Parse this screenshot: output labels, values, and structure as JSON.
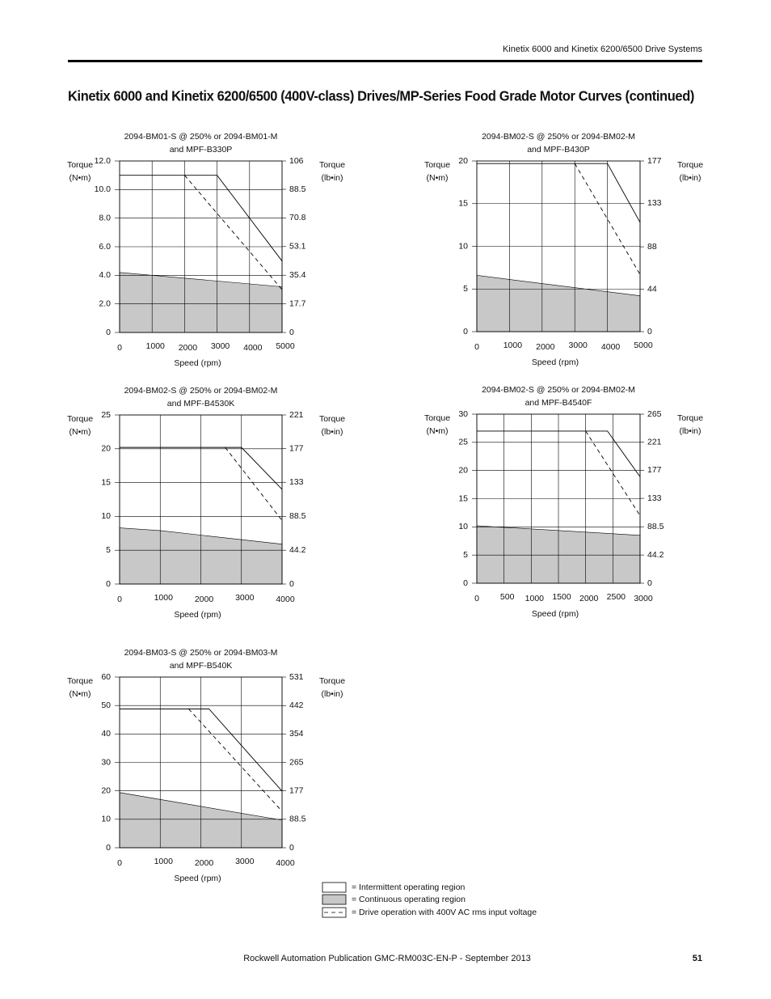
{
  "header": {
    "running_title": "Kinetix 6000 and Kinetix 6200/6500 Drive Systems"
  },
  "title": "Kinetix 6000 and Kinetix 6200/6500 (400V-class) Drives/MP-Series Food Grade Motor Curves (continued)",
  "chart_data": [
    {
      "type": "line",
      "title": [
        "2094-BM01-S @ 250% or 2094-BM01-M",
        "and MPF-B330P"
      ],
      "ylabel": [
        "Torque",
        "(N•m)"
      ],
      "y2label": [
        "Torque",
        "(lb•in)"
      ],
      "xlabel": "Speed (rpm)",
      "xlim": [
        0,
        5000
      ],
      "xticks": [
        0,
        1000,
        2000,
        3000,
        4000,
        5000
      ],
      "ylim": [
        0,
        12
      ],
      "yticks": [
        0,
        {
          "value": 2,
          "label": "2.0"
        },
        {
          "value": 4,
          "label": "4.0"
        },
        {
          "value": 6,
          "label": "6.0"
        },
        {
          "value": 8,
          "label": "8.0"
        },
        {
          "value": 10,
          "label": "10.0"
        },
        {
          "value": 12,
          "label": "12.0"
        }
      ],
      "y2lim": [
        0,
        106
      ],
      "y2ticks": [
        0,
        17.7,
        35.4,
        53.1,
        70.8,
        88.5,
        106
      ],
      "grid": true,
      "series": [
        {
          "style": "area",
          "color": "#c8c8c8",
          "x": [
            0,
            5000
          ],
          "values": [
            4.2,
            3.2
          ]
        },
        {
          "style": "solid",
          "color": "#000000",
          "x": [
            0,
            3000,
            5000
          ],
          "values": [
            11,
            11,
            5
          ]
        },
        {
          "style": "dashed",
          "color": "#000000",
          "x": [
            2000,
            5000
          ],
          "values": [
            11,
            3
          ]
        }
      ]
    },
    {
      "type": "line",
      "title": [
        "2094-BM02-S @ 250% or 2094-BM02-M",
        "and MPF-B430P"
      ],
      "ylabel": [
        "Torque",
        "(N•m)"
      ],
      "y2label": [
        "Torque",
        "(lb•in)"
      ],
      "xlabel": "Speed (rpm)",
      "xlim": [
        0,
        5000
      ],
      "xticks": [
        0,
        1000,
        2000,
        3000,
        4000,
        5000
      ],
      "ylim": [
        0,
        20
      ],
      "yticks": [
        0,
        5,
        10,
        15,
        20
      ],
      "y2lim": [
        0,
        177
      ],
      "y2ticks": [
        0,
        44,
        88,
        133,
        177
      ],
      "grid": true,
      "series": [
        {
          "style": "area",
          "color": "#c8c8c8",
          "x": [
            0,
            5000
          ],
          "values": [
            6.6,
            4.2
          ]
        },
        {
          "style": "solid",
          "color": "#000000",
          "x": [
            0,
            4000,
            5000
          ],
          "values": [
            19.7,
            19.7,
            12.8
          ]
        },
        {
          "style": "dashed",
          "color": "#000000",
          "x": [
            3000,
            5000
          ],
          "values": [
            19.7,
            6.7
          ]
        }
      ]
    },
    {
      "type": "line",
      "title": [
        "2094-BM02-S @ 250% or 2094-BM02-M",
        "and MPF-B4530K"
      ],
      "ylabel": [
        "Torque",
        "(N•m)"
      ],
      "y2label": [
        "Torque",
        "(lb•in)"
      ],
      "xlabel": "Speed (rpm)",
      "xlim": [
        0,
        4000
      ],
      "xticks": [
        0,
        1000,
        2000,
        3000,
        4000
      ],
      "ylim": [
        0,
        25
      ],
      "yticks": [
        0,
        5,
        10,
        15,
        20,
        25
      ],
      "y2lim": [
        0,
        221
      ],
      "y2ticks": [
        0,
        44.2,
        88.5,
        133,
        177,
        221
      ],
      "grid": true,
      "series": [
        {
          "style": "area",
          "color": "#c8c8c8",
          "x": [
            0,
            1000,
            4000
          ],
          "values": [
            8.3,
            7.9,
            5.9
          ]
        },
        {
          "style": "solid",
          "color": "#000000",
          "x": [
            0,
            3000,
            4000
          ],
          "values": [
            20.2,
            20.2,
            14
          ]
        },
        {
          "style": "dashed",
          "color": "#000000",
          "x": [
            2600,
            4000
          ],
          "values": [
            20.2,
            9.4
          ]
        }
      ]
    },
    {
      "type": "line",
      "title": [
        "2094-BM02-S @ 250% or 2094-BM02-M",
        "and MPF-B4540F"
      ],
      "ylabel": [
        "Torque",
        "(N•m)"
      ],
      "y2label": [
        "Torque",
        "(lb•in)"
      ],
      "xlabel": "Speed (rpm)",
      "xlim": [
        0,
        3000
      ],
      "xticks": [
        0,
        500,
        1000,
        1500,
        2000,
        2500,
        3000
      ],
      "ylim": [
        0,
        30
      ],
      "yticks": [
        0,
        5,
        10,
        15,
        20,
        25,
        30
      ],
      "y2lim": [
        0,
        265
      ],
      "y2ticks": [
        0,
        44.2,
        88.5,
        133,
        177,
        221,
        265
      ],
      "grid": true,
      "series": [
        {
          "style": "area",
          "color": "#c8c8c8",
          "x": [
            0,
            3000
          ],
          "values": [
            10.2,
            8.5
          ]
        },
        {
          "style": "solid",
          "color": "#000000",
          "x": [
            0,
            2400,
            3000
          ],
          "values": [
            27,
            27,
            18.9
          ]
        },
        {
          "style": "dashed",
          "color": "#000000",
          "x": [
            2000,
            3000
          ],
          "values": [
            27,
            12
          ]
        }
      ]
    },
    {
      "type": "line",
      "title": [
        "2094-BM03-S @ 250% or 2094-BM03-M",
        "and MPF-B540K"
      ],
      "ylabel": [
        "Torque",
        "(N•m)"
      ],
      "y2label": [
        "Torque",
        "(lb•in)"
      ],
      "xlabel": "Speed (rpm)",
      "xlim": [
        0,
        4000
      ],
      "xticks": [
        0,
        1000,
        2000,
        3000,
        4000
      ],
      "ylim": [
        0,
        60
      ],
      "yticks": [
        0,
        10,
        20,
        30,
        40,
        50,
        60
      ],
      "y2lim": [
        0,
        531
      ],
      "y2ticks": [
        0,
        88.5,
        177,
        265,
        354,
        442,
        531
      ],
      "grid": true,
      "series": [
        {
          "style": "area",
          "color": "#c8c8c8",
          "x": [
            0,
            4000
          ],
          "values": [
            19.4,
            9.7
          ]
        },
        {
          "style": "solid",
          "color": "#000000",
          "x": [
            0,
            2200,
            4000
          ],
          "values": [
            48.8,
            48.8,
            19.9
          ]
        },
        {
          "style": "dashed",
          "color": "#000000",
          "x": [
            1700,
            4000
          ],
          "values": [
            48.8,
            12.8
          ]
        }
      ]
    }
  ],
  "legend": [
    "= Intermittent operating region",
    "= Continuous operating region",
    "= Drive operation with 400V AC rms input voltage"
  ],
  "footer": {
    "publication": "Rockwell Automation Publication GMC-RM003C-EN-P - September 2013",
    "page_number": "51"
  }
}
